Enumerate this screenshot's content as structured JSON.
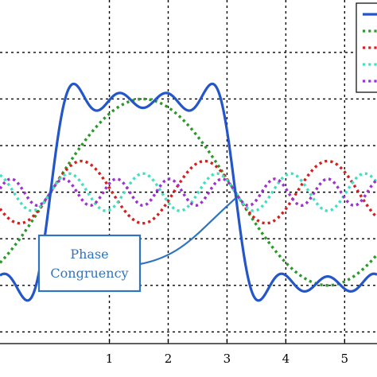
{
  "chart_data": {
    "type": "line",
    "xlim": [
      -0.86,
      5.55
    ],
    "ylim": [
      -1.3,
      1.65
    ],
    "x_ticks": [
      {
        "value": 1,
        "label": "1"
      },
      {
        "value": 2,
        "label": "2"
      },
      {
        "value": 3,
        "label": "3"
      },
      {
        "value": 4,
        "label": "4"
      },
      {
        "value": 5,
        "label": "5"
      }
    ],
    "y_gridlines": [
      -1.2,
      -0.8,
      -0.4,
      0,
      0.4,
      0.8,
      1.2
    ],
    "grid": true,
    "legend_placement": "top-right",
    "series": [
      {
        "color": "#2456c9",
        "style": "solid",
        "kind": "sum",
        "harmonics": [
          1,
          3,
          5,
          7
        ],
        "amplitude": 0.7854
      },
      {
        "color": "#2a9a2a",
        "style": "dotted",
        "kind": "harmonic",
        "n": 1,
        "amplitude": 0.8
      },
      {
        "color": "#d62020",
        "style": "dotted",
        "kind": "harmonic",
        "n": 3,
        "amplitude": 0.267
      },
      {
        "color": "#40e0c0",
        "style": "dotted",
        "kind": "harmonic",
        "n": 5,
        "amplitude": 0.16
      },
      {
        "color": "#a030d0",
        "style": "dotted",
        "kind": "harmonic",
        "n": 7,
        "amplitude": 0.114
      }
    ],
    "annotation": {
      "lines": [
        "Phase",
        "Congruency"
      ],
      "target_x": 3.1416,
      "target_y": 0,
      "color": "#2f74c0"
    }
  }
}
